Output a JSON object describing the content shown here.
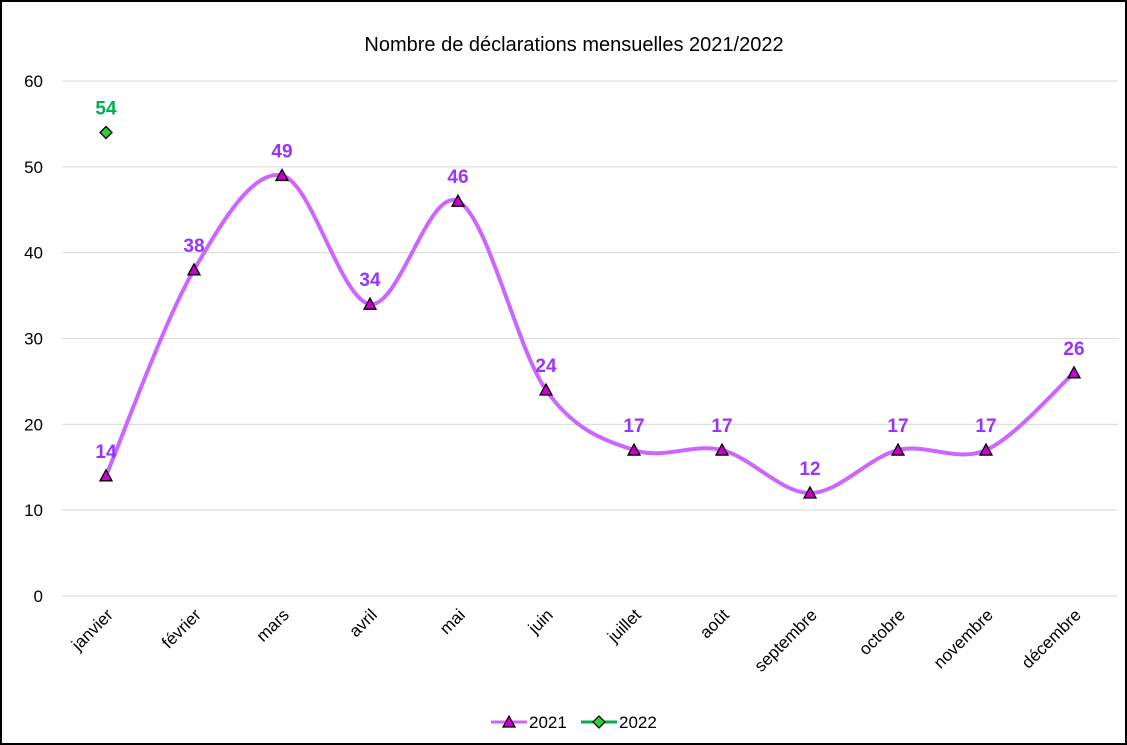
{
  "chart_data": {
    "type": "line",
    "title": "Nombre de déclarations mensuelles 2021/2022",
    "xlabel": "",
    "ylabel": "",
    "categories": [
      "janvier",
      "février",
      "mars",
      "avril",
      "mai",
      "juin",
      "juillet",
      "août",
      "septembre",
      "octobre",
      "novembre",
      "décembre"
    ],
    "ylim": [
      0,
      60
    ],
    "yticks": [
      0,
      10,
      20,
      30,
      40,
      50,
      60
    ],
    "grid": true,
    "legend_position": "bottom",
    "series": [
      {
        "name": "2021",
        "values": [
          14,
          38,
          49,
          34,
          46,
          24,
          17,
          17,
          12,
          17,
          17,
          26
        ],
        "line_color": "#cc66ff",
        "marker": "triangle",
        "marker_fill": "#cc00cc",
        "label_color": "#9933ff",
        "smooth": true
      },
      {
        "name": "2022",
        "values": [
          54,
          null,
          null,
          null,
          null,
          null,
          null,
          null,
          null,
          null,
          null,
          null
        ],
        "line_color": "#00b050",
        "marker": "diamond",
        "marker_fill": "#33cc33",
        "label_color": "#00b050",
        "smooth": false
      }
    ]
  }
}
